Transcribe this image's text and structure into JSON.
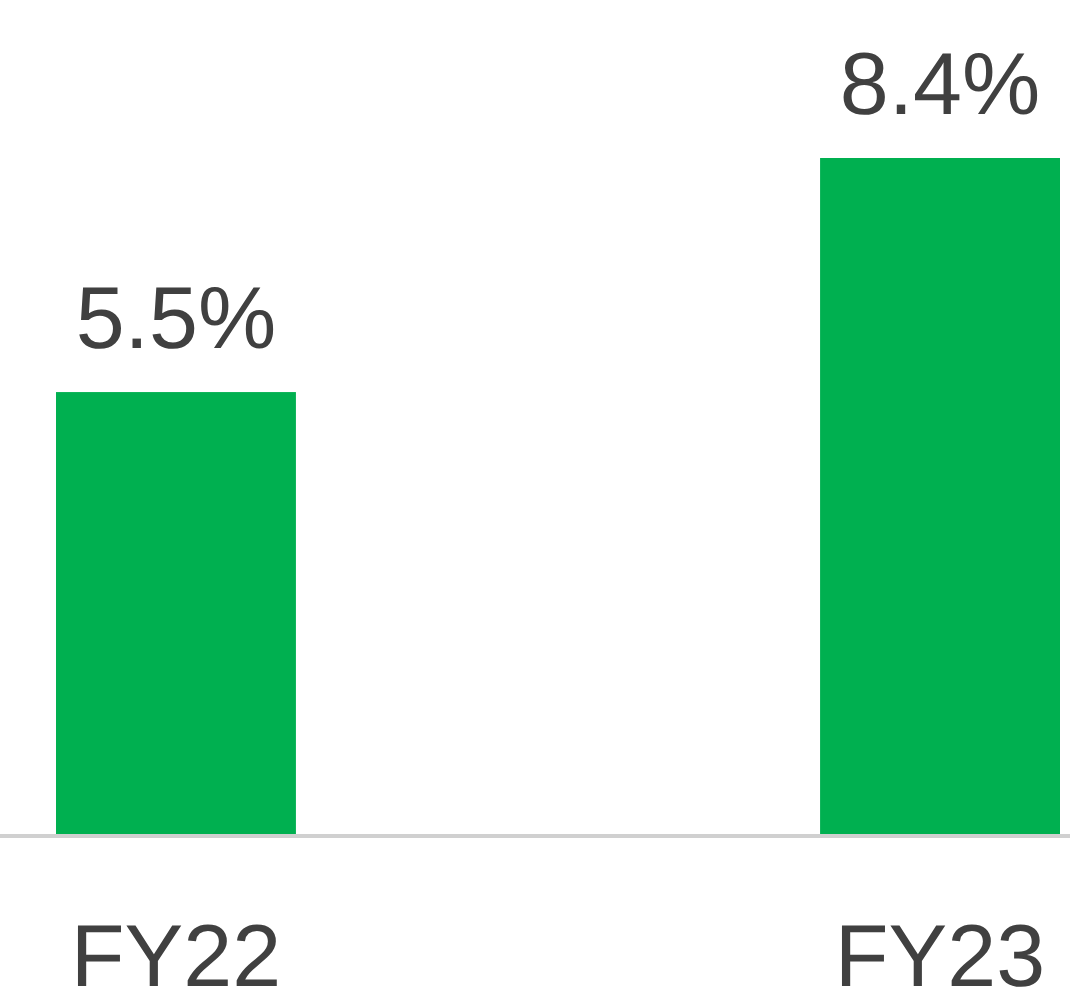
{
  "chart_data": {
    "type": "bar",
    "categories": [
      "FY22",
      "FY23"
    ],
    "values": [
      5.5,
      8.4
    ],
    "color": "#00b050",
    "data_labels": true,
    "value_labels": [
      "5.5%",
      "8.4%"
    ]
  }
}
